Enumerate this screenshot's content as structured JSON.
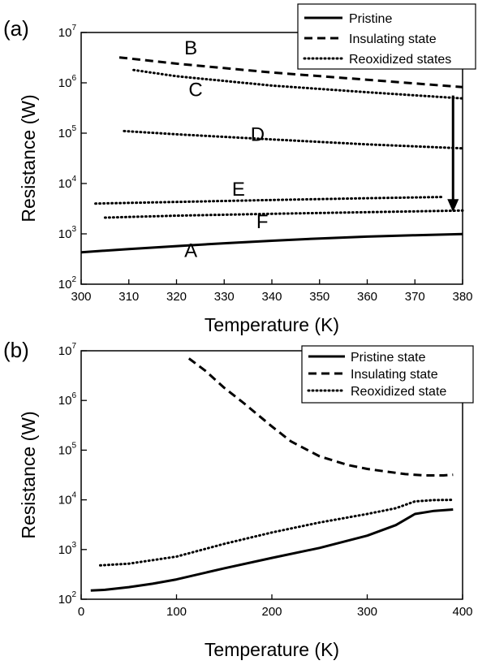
{
  "chart_data": [
    {
      "panel_label": "(a)",
      "type": "line",
      "xlabel": "Temperature (K)",
      "ylabel": "Resistance (W)",
      "y_scale": "log",
      "xlim": [
        300,
        380
      ],
      "ylim": [
        100,
        10000000
      ],
      "x_ticks": [
        "300",
        "310",
        "320",
        "330",
        "340",
        "350",
        "360",
        "370",
        "380"
      ],
      "y_ticks": [
        {
          "base": "10",
          "exp": "2"
        },
        {
          "base": "10",
          "exp": "3"
        },
        {
          "base": "10",
          "exp": "4"
        },
        {
          "base": "10",
          "exp": "5"
        },
        {
          "base": "10",
          "exp": "6"
        },
        {
          "base": "10",
          "exp": "7"
        }
      ],
      "legend_position": "top-right",
      "legend": [
        {
          "label": "Pristine",
          "style": "solid"
        },
        {
          "label": "Insulating state",
          "style": "dashed"
        },
        {
          "label": "Reoxidized states",
          "style": "dotted"
        }
      ],
      "series": [
        {
          "style": "solid",
          "x": [
            300,
            310,
            320,
            330,
            340,
            350,
            360,
            370,
            380
          ],
          "y": [
            430,
            500,
            570,
            650,
            730,
            810,
            880,
            940,
            990
          ]
        },
        {
          "style": "dashed",
          "x": [
            308,
            320,
            340,
            360,
            380
          ],
          "y": [
            3200000,
            2400000,
            1600000,
            1150000,
            820000
          ]
        },
        {
          "style": "dotted",
          "x": [
            311,
            320,
            340,
            360,
            380
          ],
          "y": [
            1800000,
            1350000,
            880000,
            650000,
            490000
          ]
        },
        {
          "style": "dotted",
          "x": [
            309,
            320,
            340,
            360,
            380
          ],
          "y": [
            110000,
            95000,
            75000,
            60000,
            50000
          ]
        },
        {
          "style": "dotted",
          "x": [
            303,
            320,
            340,
            360,
            376
          ],
          "y": [
            4000,
            4300,
            4700,
            5100,
            5400
          ]
        },
        {
          "style": "dotted",
          "x": [
            305,
            320,
            340,
            360,
            380
          ],
          "y": [
            2100,
            2300,
            2500,
            2700,
            2900
          ]
        }
      ],
      "annotations": [
        {
          "text": "A",
          "x": 323,
          "y": 350
        },
        {
          "text": "B",
          "x": 323,
          "y": 3700000
        },
        {
          "text": "C",
          "x": 324,
          "y": 540000
        },
        {
          "text": "D",
          "x": 337,
          "y": 70000
        },
        {
          "text": "E",
          "x": 333,
          "y": 5700
        },
        {
          "text": "F",
          "x": 338,
          "y": 1300
        }
      ],
      "arrow": {
        "x": 378,
        "y_from": 560000,
        "y_to": 2700
      }
    },
    {
      "panel_label": "(b)",
      "type": "line",
      "xlabel": "Temperature (K)",
      "ylabel": "Resistance (W)",
      "y_scale": "log",
      "xlim": [
        0,
        400
      ],
      "ylim": [
        100,
        10000000
      ],
      "x_ticks": [
        "0",
        "100",
        "200",
        "300",
        "400"
      ],
      "y_ticks": [
        {
          "base": "10",
          "exp": "2"
        },
        {
          "base": "10",
          "exp": "3"
        },
        {
          "base": "10",
          "exp": "4"
        },
        {
          "base": "10",
          "exp": "5"
        },
        {
          "base": "10",
          "exp": "6"
        },
        {
          "base": "10",
          "exp": "7"
        }
      ],
      "legend_position": "top-right",
      "legend": [
        {
          "label": "Pristine state",
          "style": "solid"
        },
        {
          "label": "Insulating state",
          "style": "dashed"
        },
        {
          "label": "Reoxidized state",
          "style": "dotted"
        }
      ],
      "series": [
        {
          "style": "solid",
          "x": [
            10,
            25,
            50,
            75,
            100,
            150,
            200,
            250,
            300,
            330,
            350,
            370,
            390
          ],
          "y": [
            150,
            155,
            175,
            205,
            250,
            420,
            680,
            1080,
            1900,
            3100,
            5200,
            6000,
            6400
          ]
        },
        {
          "style": "dashed",
          "x": [
            113,
            130,
            150,
            170,
            200,
            220,
            250,
            280,
            300,
            320,
            340,
            360,
            380,
            390
          ],
          "y": [
            7000000,
            4000000,
            1800000,
            900000,
            300000,
            150000,
            75000,
            50000,
            42000,
            37000,
            33000,
            31000,
            31000,
            32000
          ]
        },
        {
          "style": "dotted",
          "x": [
            20,
            50,
            100,
            150,
            200,
            250,
            300,
            330,
            350,
            370,
            390
          ],
          "y": [
            480,
            520,
            720,
            1300,
            2200,
            3500,
            5200,
            6800,
            9300,
            9900,
            10000
          ]
        }
      ]
    }
  ]
}
